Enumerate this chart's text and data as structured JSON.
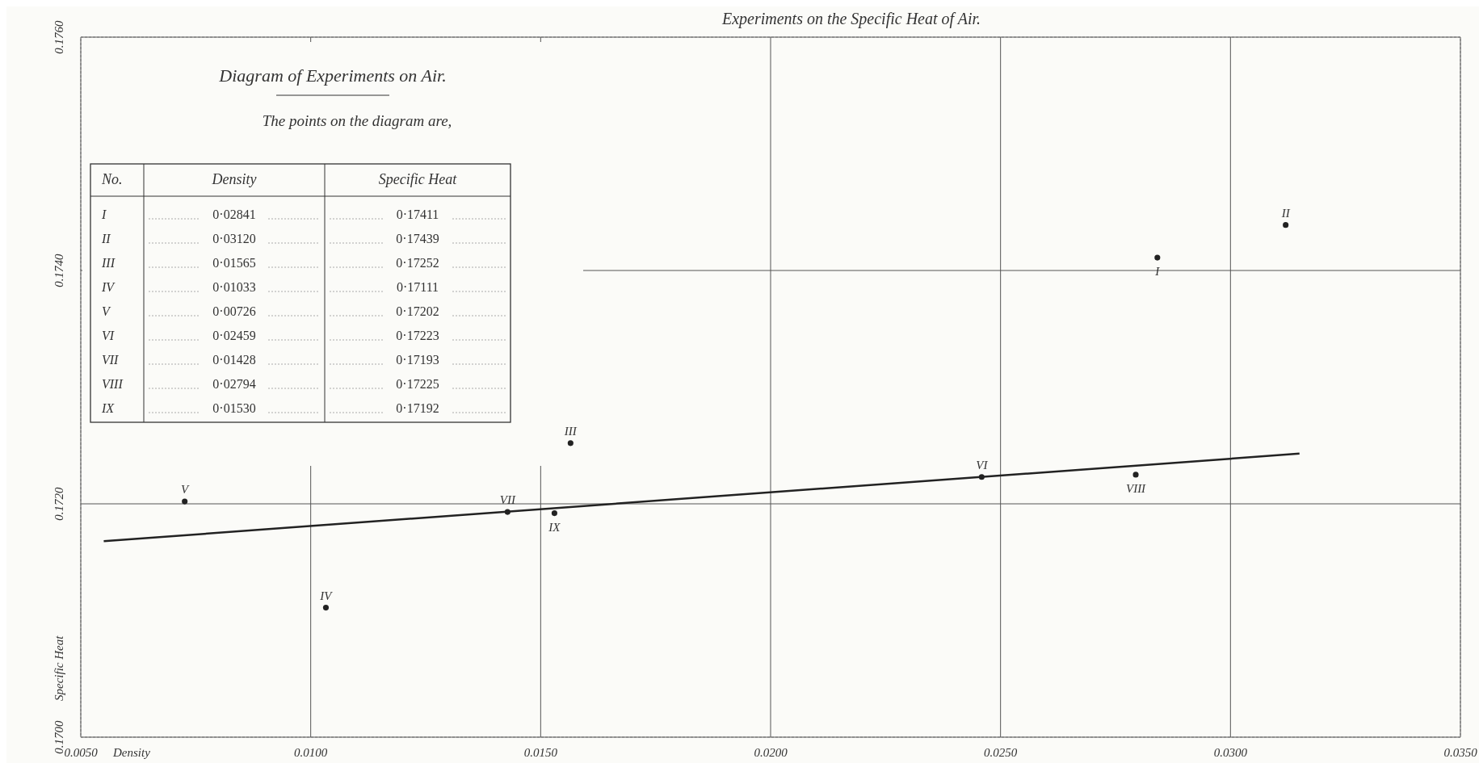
{
  "chart_data": {
    "type": "scatter",
    "title": "Experiments on the Specific Heat of Air.",
    "xlabel": "Density",
    "ylabel": "Specific Heat",
    "xlim": [
      0.005,
      0.035
    ],
    "ylim": [
      0.17,
      0.176
    ],
    "xticks": [
      {
        "value": 0.005,
        "label": "0.0050"
      },
      {
        "value": 0.01,
        "label": "0.0100"
      },
      {
        "value": 0.015,
        "label": "0.0150"
      },
      {
        "value": 0.02,
        "label": "0.0200"
      },
      {
        "value": 0.025,
        "label": "0.0250"
      },
      {
        "value": 0.03,
        "label": "0.0300"
      },
      {
        "value": 0.035,
        "label": "0.0350"
      }
    ],
    "yticks": [
      {
        "value": 0.17,
        "label": "0.1700"
      },
      {
        "value": 0.172,
        "label": "0.1720"
      },
      {
        "value": 0.174,
        "label": "0.1740"
      },
      {
        "value": 0.176,
        "label": "0.1760"
      }
    ],
    "grid": true,
    "marker": "circle",
    "series": [
      {
        "color": "#222222",
        "x": [
          0.02841,
          0.0312,
          0.01565,
          0.01033,
          0.00726,
          0.02459,
          0.01428,
          0.02794,
          0.0153
        ],
        "values": [
          0.17411,
          0.17439,
          0.17252,
          0.17111,
          0.17202,
          0.17223,
          0.17193,
          0.17225,
          0.17192
        ]
      },
      {
        "type": "line",
        "marker": "none",
        "color": "#222222",
        "x": [
          0.0055,
          0.0315
        ],
        "values": [
          0.17168,
          0.17243
        ]
      }
    ],
    "annotations": [
      {
        "text": "I",
        "x": 0.02841,
        "y": 0.17411
      },
      {
        "text": "II",
        "x": 0.0312,
        "y": 0.17439
      },
      {
        "text": "III",
        "x": 0.01565,
        "y": 0.17252
      },
      {
        "text": "IV",
        "x": 0.01033,
        "y": 0.17111
      },
      {
        "text": "V",
        "x": 0.00726,
        "y": 0.17202
      },
      {
        "text": "VI",
        "x": 0.02459,
        "y": 0.17223
      },
      {
        "text": "VII",
        "x": 0.01428,
        "y": 0.17193
      },
      {
        "text": "VIII",
        "x": 0.02794,
        "y": 0.17225
      },
      {
        "text": "IX",
        "x": 0.0153,
        "y": 0.17192
      },
      "Diagram of Experiments on Air.",
      "The points on the diagram are,",
      "No.",
      "Density",
      "Specific Heat",
      "0·02841",
      "0·17411",
      "0·03120",
      "0·17439",
      "0·01565",
      "0·17252",
      "0·01033",
      "0·17111",
      "0·00726",
      "0·17202",
      "0·02459",
      "0·17223",
      "0·01428",
      "0·17193",
      "0·02794",
      "0·17225",
      "0·01530",
      "0·17192"
    ]
  }
}
